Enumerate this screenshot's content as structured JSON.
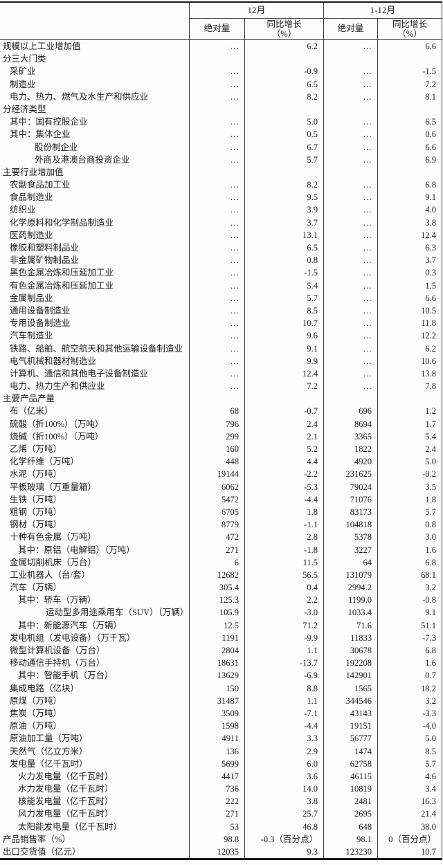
{
  "colors": {
    "border": "#191919",
    "text": "#1b1b1b",
    "background": "#fbfbfb"
  },
  "header": {
    "col_dec": "12月",
    "col_year": "1-12月",
    "sub_abs": "绝对量",
    "sub_yoy": "同比增长",
    "sub_yoy_unit": "（%）"
  },
  "rows": [
    {
      "label": "规模以上工业增加值",
      "level": 0,
      "v": [
        "…",
        "6.2",
        "…",
        "6.6"
      ]
    },
    {
      "label": "分三大门类",
      "level": 0,
      "v": [
        "",
        "",
        "",
        ""
      ]
    },
    {
      "label": "采矿业",
      "level": 1,
      "v": [
        "…",
        "-0.9",
        "…",
        "-1.5"
      ]
    },
    {
      "label": "制造业",
      "level": 1,
      "v": [
        "…",
        "6.5",
        "…",
        "7.2"
      ]
    },
    {
      "label": "电力、热力、燃气及水生产和供应业",
      "level": 1,
      "v": [
        "…",
        "8.2",
        "…",
        "8.1"
      ]
    },
    {
      "label": "分经济类型",
      "level": 0,
      "v": [
        "",
        "",
        "",
        ""
      ]
    },
    {
      "label": "其中：国有控股企业",
      "level": 1,
      "v": [
        "…",
        "5.0",
        "…",
        "6.5"
      ]
    },
    {
      "label": "其中：集体企业",
      "level": 1,
      "v": [
        "…",
        "0.5",
        "…",
        "0.6"
      ]
    },
    {
      "label": "股份制企业",
      "level": 3,
      "v": [
        "…",
        "6.7",
        "…",
        "6.6"
      ]
    },
    {
      "label": "外商及港澳台商投资企业",
      "level": 3,
      "v": [
        "…",
        "5.7",
        "…",
        "6.9"
      ]
    },
    {
      "label": "主要行业增加值",
      "level": 0,
      "v": [
        "",
        "",
        "",
        ""
      ]
    },
    {
      "label": "农副食品加工业",
      "level": 1,
      "v": [
        "…",
        "8.2",
        "…",
        "6.8"
      ]
    },
    {
      "label": "食品制造业",
      "level": 1,
      "v": [
        "…",
        "9.5",
        "…",
        "9.1"
      ]
    },
    {
      "label": "纺织业",
      "level": 1,
      "v": [
        "…",
        "3.9",
        "…",
        "4.0"
      ]
    },
    {
      "label": "化学原料和化学制品制造业",
      "level": 1,
      "v": [
        "…",
        "3.7",
        "…",
        "3.8"
      ]
    },
    {
      "label": "医药制造业",
      "level": 1,
      "v": [
        "…",
        "13.1",
        "…",
        "12.4"
      ]
    },
    {
      "label": "橡胶和塑料制品业",
      "level": 1,
      "v": [
        "…",
        "6.5",
        "…",
        "6.3"
      ]
    },
    {
      "label": "非金属矿物制品业",
      "level": 1,
      "v": [
        "…",
        "0.8",
        "…",
        "3.7"
      ]
    },
    {
      "label": "黑色金属冶炼和压延加工业",
      "level": 1,
      "v": [
        "…",
        "-1.5",
        "…",
        "0.3"
      ]
    },
    {
      "label": "有色金属冶炼和压延加工业",
      "level": 1,
      "v": [
        "…",
        "5.4",
        "…",
        "1.5"
      ]
    },
    {
      "label": "金属制品业",
      "level": 1,
      "v": [
        "…",
        "5.7",
        "…",
        "6.6"
      ]
    },
    {
      "label": "通用设备制造业",
      "level": 1,
      "v": [
        "…",
        "8.5",
        "…",
        "10.5"
      ]
    },
    {
      "label": "专用设备制造业",
      "level": 1,
      "v": [
        "…",
        "10.7",
        "…",
        "11.8"
      ]
    },
    {
      "label": "汽车制造业",
      "level": 1,
      "v": [
        "…",
        "9.6",
        "…",
        "12.2"
      ]
    },
    {
      "label": "铁路、船舶、航空航天和其他运输设备制造业",
      "level": 1,
      "v": [
        "…",
        "9.1",
        "…",
        "6.2"
      ]
    },
    {
      "label": "电气机械和器材制造业",
      "level": 1,
      "v": [
        "…",
        "9.9",
        "…",
        "10.6"
      ]
    },
    {
      "label": "计算机、通信和其他电子设备制造业",
      "level": 1,
      "v": [
        "…",
        "12.4",
        "…",
        "13.8"
      ]
    },
    {
      "label": "电力、热力生产和供应业",
      "level": 1,
      "v": [
        "…",
        "7.2",
        "…",
        "7.8"
      ]
    },
    {
      "label": "主要产品产量",
      "level": 0,
      "v": [
        "",
        "",
        "",
        ""
      ]
    },
    {
      "label": "布（亿米）",
      "level": 1,
      "v": [
        "68",
        "-0.7",
        "696",
        "1.2"
      ]
    },
    {
      "label": "硫酸（折100%）（万吨）",
      "level": 1,
      "v": [
        "796",
        "2.4",
        "8694",
        "1.7"
      ]
    },
    {
      "label": "烧碱（折100%）（万吨）",
      "level": 1,
      "v": [
        "299",
        "2.1",
        "3365",
        "5.4"
      ]
    },
    {
      "label": "乙烯（万吨）",
      "level": 1,
      "v": [
        "160",
        "5.2",
        "1822",
        "2.4"
      ]
    },
    {
      "label": "化学纤维（万吨）",
      "level": 1,
      "v": [
        "448",
        "4.4",
        "4920",
        "5.0"
      ]
    },
    {
      "label": "水泥（万吨）",
      "level": 1,
      "v": [
        "19144",
        "-2.2",
        "231625",
        "-0.2"
      ]
    },
    {
      "label": "平板玻璃（万重量箱）",
      "level": 1,
      "v": [
        "6062",
        "-5.3",
        "79024",
        "3.5"
      ]
    },
    {
      "label": "生铁（万吨）",
      "level": 1,
      "v": [
        "5472",
        "-4.4",
        "71076",
        "1.8"
      ]
    },
    {
      "label": "粗钢（万吨）",
      "level": 1,
      "v": [
        "6705",
        "1.8",
        "83173",
        "5.7"
      ]
    },
    {
      "label": "钢材（万吨）",
      "level": 1,
      "v": [
        "8779",
        "-1.1",
        "104818",
        "0.8"
      ]
    },
    {
      "label": "十种有色金属（万吨）",
      "level": 1,
      "v": [
        "472",
        "2.8",
        "5378",
        "3.0"
      ]
    },
    {
      "label": "其中：原铝（电解铝）（万吨）",
      "level": 2,
      "v": [
        "271",
        "-1.8",
        "3227",
        "1.6"
      ]
    },
    {
      "label": "金属切削机床（万台）",
      "level": 1,
      "v": [
        "6",
        "11.5",
        "64",
        "6.8"
      ]
    },
    {
      "label": "工业机器人（台/套）",
      "level": 1,
      "v": [
        "12682",
        "56.5",
        "131079",
        "68.1"
      ]
    },
    {
      "label": "汽车（万辆）",
      "level": 1,
      "v": [
        "305.4",
        "0.4",
        "2994.2",
        "3.2"
      ]
    },
    {
      "label": "其中：轿车（万辆）",
      "level": 2,
      "v": [
        "125.3",
        "2.2",
        "1199.0",
        "-0.8"
      ]
    },
    {
      "label": "运动型多用途乘用车（SUV）（万辆）",
      "level": 4,
      "v": [
        "105.9",
        "-3.0",
        "1033.4",
        "9.1"
      ]
    },
    {
      "label": "其中：新能源汽车（万辆）",
      "level": 2,
      "v": [
        "12.5",
        "71.2",
        "71.6",
        "51.1"
      ]
    },
    {
      "label": "发电机组（发电设备）（万千瓦）",
      "level": 1,
      "v": [
        "1191",
        "-9.9",
        "11833",
        "-7.3"
      ]
    },
    {
      "label": "微型计算机设备（万台）",
      "level": 1,
      "v": [
        "2804",
        "1.1",
        "30678",
        "6.8"
      ]
    },
    {
      "label": "移动通信手持机（万台）",
      "level": 1,
      "v": [
        "18631",
        "-13.7",
        "192208",
        "1.6"
      ]
    },
    {
      "label": "其中：智能手机（万台）",
      "level": 2,
      "v": [
        "13629",
        "-6.9",
        "142901",
        "0.7"
      ]
    },
    {
      "label": "集成电路（亿块）",
      "level": 1,
      "v": [
        "150",
        "8.8",
        "1565",
        "18.2"
      ]
    },
    {
      "label": "原煤（万吨）",
      "level": 1,
      "v": [
        "31487",
        "1.1",
        "344546",
        "3.2"
      ]
    },
    {
      "label": "焦炭（万吨）",
      "level": 1,
      "v": [
        "3509",
        "-7.1",
        "43143",
        "-3.3"
      ]
    },
    {
      "label": "原油（万吨）",
      "level": 1,
      "v": [
        "1598",
        "-4.4",
        "19151",
        "-4.0"
      ]
    },
    {
      "label": "原油加工量（万吨）",
      "level": 1,
      "v": [
        "4911",
        "3.3",
        "56777",
        "5.0"
      ]
    },
    {
      "label": "天然气（亿立方米）",
      "level": 1,
      "v": [
        "136",
        "2.9",
        "1474",
        "8.5"
      ]
    },
    {
      "label": "发电量（亿千瓦时）",
      "level": 1,
      "v": [
        "5699",
        "6.0",
        "62758",
        "5.7"
      ]
    },
    {
      "label": "火力发电量（亿千瓦时）",
      "level": 2,
      "v": [
        "4417",
        "3.6",
        "46115",
        "4.6"
      ]
    },
    {
      "label": "水力发电量（亿千瓦时）",
      "level": 2,
      "v": [
        "736",
        "14.0",
        "10819",
        "3.4"
      ]
    },
    {
      "label": "核能发电量（亿千瓦时）",
      "level": 2,
      "v": [
        "222",
        "3.8",
        "2481",
        "16.3"
      ]
    },
    {
      "label": "风力发电量（亿千瓦时）",
      "level": 2,
      "v": [
        "271",
        "25.7",
        "2695",
        "21.4"
      ]
    },
    {
      "label": "太阳能发电量（亿千瓦时）",
      "level": 2,
      "v": [
        "53",
        "46.8",
        "648",
        "38.0"
      ]
    },
    {
      "label": "产品销售率（%）",
      "level": 0,
      "v": [
        "98.8",
        "-0.3（百分点）",
        "98.1",
        "0（百分点）"
      ]
    },
    {
      "label": "出口交货值（亿元）",
      "level": 0,
      "v": [
        "12035",
        "9.3",
        "123230",
        "10.7"
      ]
    }
  ]
}
